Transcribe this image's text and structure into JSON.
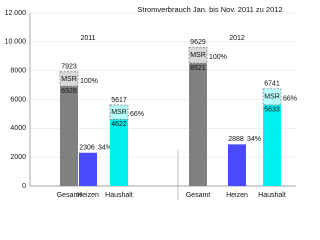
{
  "chart_data": {
    "type": "bar",
    "title": "Stromverbrauch Jan. bis Nov. 2011 zu 2012",
    "groups": [
      "2011",
      "2012"
    ],
    "categories": [
      "Gesamt",
      "Heizen",
      "Haushalt",
      "Gesamt",
      "Heizen",
      "Haushalt"
    ],
    "values": [
      6928,
      2306,
      4622,
      8521,
      2888,
      5633
    ],
    "colors": [
      "#808080",
      "#4a4aff",
      "#00f0f0",
      "#808080",
      "#4a4aff",
      "#00f0f0"
    ],
    "msr_totals": [
      7923,
      null,
      5617,
      9629,
      null,
      6741
    ],
    "msr_label": "MSR",
    "share_labels": [
      "100%",
      "34%",
      "66%",
      "100%",
      "34%",
      "66%"
    ],
    "ylim": [
      0,
      12000
    ],
    "yticks": [
      0,
      2000,
      4000,
      6000,
      8000,
      {
        "value": 10000,
        "label": "10.000"
      },
      {
        "value": 12000,
        "label": "12.000"
      }
    ],
    "grid": true
  }
}
